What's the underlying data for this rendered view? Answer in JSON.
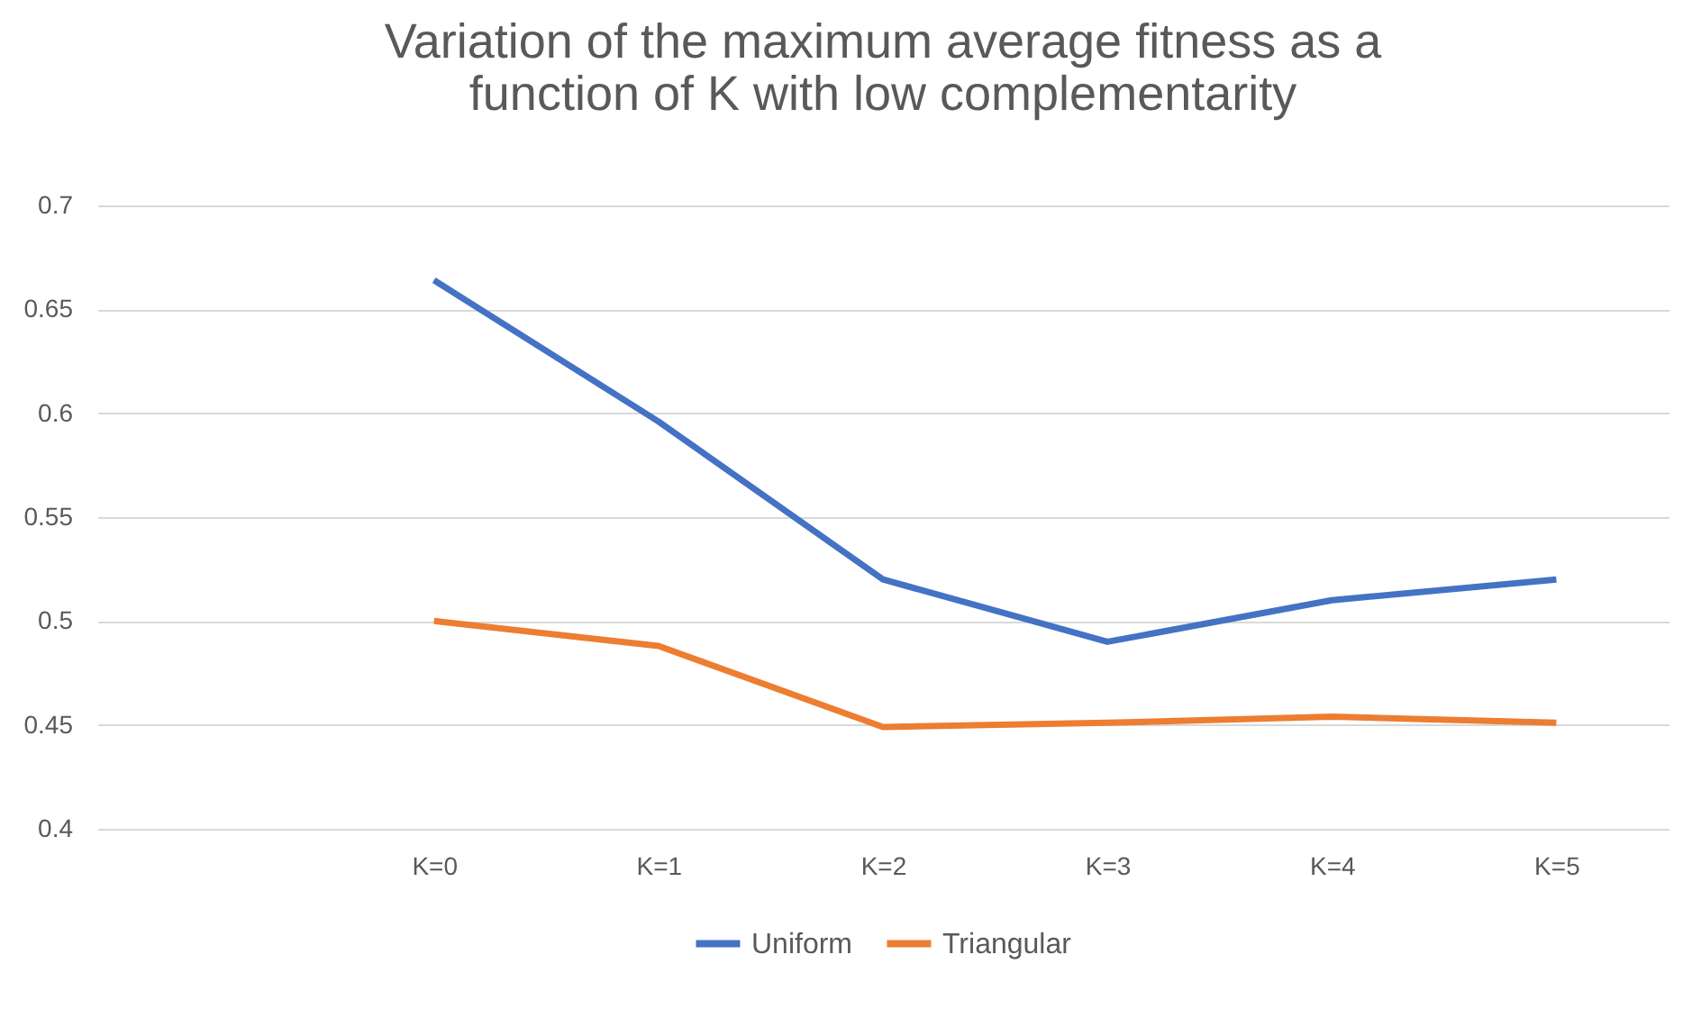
{
  "chart_data": {
    "type": "line",
    "title": "Variation of the maximum average fitness as a function of K with low complementarity",
    "categories": [
      null,
      "K=0",
      "K=1",
      "K=2",
      "K=3",
      "K=4",
      "K=5"
    ],
    "series": [
      {
        "name": "Uniform",
        "color": "#4472c4",
        "values": [
          null,
          0.664,
          0.596,
          0.52,
          0.49,
          0.51,
          0.52
        ]
      },
      {
        "name": "Triangular",
        "color": "#ed7d31",
        "values": [
          null,
          0.5,
          0.488,
          0.449,
          0.451,
          0.454,
          0.451
        ]
      }
    ],
    "ylim": [
      0.4,
      0.7
    ],
    "yticks": [
      0.4,
      0.45,
      0.5,
      0.55,
      0.6,
      0.65,
      0.7
    ],
    "grid": "y",
    "legend": "bottom",
    "marker": "none",
    "line_style": "solid"
  }
}
